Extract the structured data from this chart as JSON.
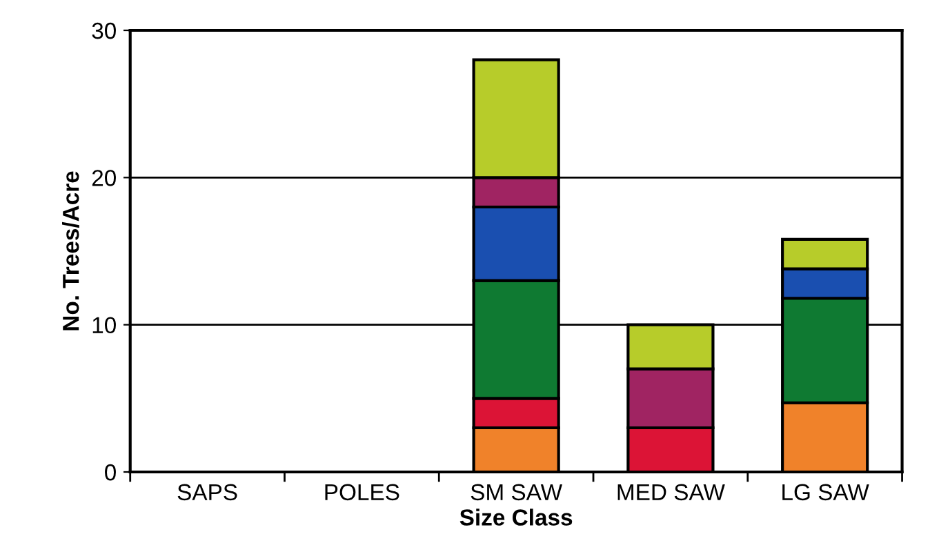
{
  "chart_data": {
    "type": "bar",
    "stacked": true,
    "xlabel": "Size Class",
    "ylabel": "No. Trees/Acre",
    "categories": [
      "SAPS",
      "POLES",
      "SM SAW",
      "MED SAW",
      "LG SAW"
    ],
    "series": [
      {
        "color": "#f0822a",
        "values": [
          null,
          null,
          3,
          null,
          4.7
        ]
      },
      {
        "color": "#dc1436",
        "values": [
          null,
          null,
          2,
          3,
          null
        ]
      },
      {
        "color": "#0f7a32",
        "values": [
          null,
          null,
          8,
          null,
          7.1
        ]
      },
      {
        "color": "#1a4fb0",
        "values": [
          null,
          null,
          5,
          null,
          2
        ]
      },
      {
        "color": "#a02462",
        "values": [
          null,
          null,
          2,
          4,
          null
        ]
      },
      {
        "color": "#b7cc2a",
        "values": [
          null,
          null,
          8,
          3,
          2
        ]
      }
    ],
    "ylim": [
      0,
      30
    ],
    "yticks": [
      0,
      10,
      20,
      30
    ],
    "grid": "y",
    "legend": false
  }
}
